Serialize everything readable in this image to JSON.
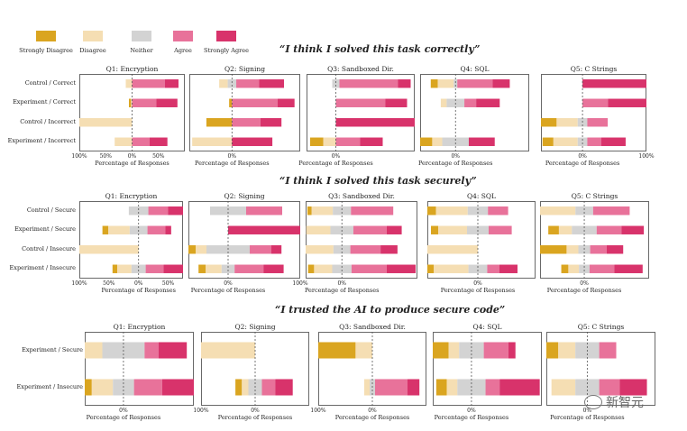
{
  "legend": {
    "items": [
      {
        "label": "Strongly Disagree",
        "color": "#daa520"
      },
      {
        "label": "Disagree",
        "color": "#f5deb3"
      },
      {
        "label": "Neither",
        "color": "#d3d3d3"
      },
      {
        "label": "Agree",
        "color": "#e8729a"
      },
      {
        "label": "Strongly Agree",
        "color": "#d8336b"
      }
    ]
  },
  "watermark": {
    "text": "新智元"
  },
  "chart_data": [
    {
      "type": "bar",
      "subtype": "diverging-stacked-bar",
      "title": "“I think I solved this task correctly”",
      "categories": [
        "Control / Correct",
        "Experiment / Correct",
        "Control / Incorrect",
        "Experiment / Incorrect"
      ],
      "xlabel": "Percentage of Responses",
      "panels": [
        {
          "title": "Q1: Encryption",
          "ticks": [
            "100%",
            "50%",
            "0%",
            "50%"
          ],
          "xlim": [
            -100,
            100
          ],
          "rows": [
            [
              0,
              12,
              0,
              62,
              26
            ],
            [
              4,
              2,
              0,
              46,
              40
            ],
            [
              0,
              100,
              0,
              0,
              0
            ],
            [
              0,
              33,
              0,
              33,
              34
            ]
          ]
        },
        {
          "title": "Q2: Signing",
          "ticks": [
            "0%"
          ],
          "xlim": [
            -75,
            120
          ],
          "rows": [
            [
              0,
              15,
              15,
              40,
              44
            ],
            [
              5,
              0,
              0,
              80,
              30
            ],
            [
              45,
              0,
              0,
              50,
              37
            ],
            [
              0,
              70,
              0,
              0,
              71
            ]
          ]
        },
        {
          "title": "Q3: Sandboxed Dir.",
          "ticks": [
            "0%"
          ],
          "xlim": [
            -65,
            175
          ],
          "rows": [
            [
              0,
              0,
              16,
              130,
              28
            ],
            [
              0,
              0,
              0,
              110,
              48
            ],
            [
              0,
              0,
              0,
              0,
              175
            ],
            [
              29,
              28,
              0,
              54,
              50
            ]
          ]
        },
        {
          "title": "Q4: SQL",
          "ticks": [
            "0%"
          ],
          "xlim": [
            -60,
            125
          ],
          "rows": [
            [
              12,
              27,
              6,
              60,
              29
            ],
            [
              0,
              10,
              30,
              20,
              40
            ],
            [
              0,
              0,
              0,
              0,
              0
            ],
            [
              25,
              17,
              45,
              0,
              44
            ]
          ]
        },
        {
          "title": "Q5: C Strings",
          "ticks": [
            "0%",
            "100%"
          ],
          "xlim": [
            -65,
            100
          ],
          "rows": [
            [
              0,
              0,
              0,
              0,
              100
            ],
            [
              0,
              0,
              0,
              40,
              60
            ],
            [
              35,
              33,
              15,
              32,
              0
            ],
            [
              17,
              38,
              15,
              22,
              38
            ]
          ]
        }
      ]
    },
    {
      "type": "bar",
      "subtype": "diverging-stacked-bar",
      "title": "“I think I solved this task securely”",
      "categories": [
        "Control / Secure",
        "Experiment / Secure",
        "Control / Insecure",
        "Experiment / Insecure"
      ],
      "xlabel": "Percentage of Responses",
      "panels": [
        {
          "title": "Q1: Encryption",
          "ticks": [
            "100%",
            "50%",
            "0%",
            "50%"
          ],
          "xlim": [
            -100,
            75
          ],
          "rows": [
            [
              0,
              0,
              33,
              33,
              40
            ],
            [
              10,
              36,
              30,
              30,
              10
            ],
            [
              0,
              100,
              0,
              0,
              0
            ],
            [
              8,
              24,
              24,
              30,
              34
            ]
          ]
        },
        {
          "title": "Q2: Signing",
          "ticks": [
            "0%",
            "100%"
          ],
          "xlim": [
            -55,
            100
          ],
          "rows": [
            [
              0,
              0,
              50,
              50,
              0
            ],
            [
              0,
              0,
              0,
              0,
              100
            ],
            [
              15,
              15,
              60,
              30,
              14
            ],
            [
              10,
              22,
              18,
              40,
              28
            ]
          ]
        },
        {
          "title": "Q3: Sandboxed Dir.",
          "ticks": [
            "0%"
          ],
          "xlim": [
            -60,
            125
          ],
          "rows": [
            [
              7,
              35,
              30,
              70,
              0
            ],
            [
              0,
              40,
              38,
              55,
              25
            ],
            [
              0,
              48,
              28,
              50,
              28
            ],
            [
              10,
              30,
              32,
              58,
              48
            ]
          ]
        },
        {
          "title": "Q4: SQL",
          "ticks": [
            "0%"
          ],
          "xlim": [
            -70,
            80
          ],
          "rows": [
            [
              15,
              44,
              28,
              28,
              0
            ],
            [
              10,
              40,
              30,
              32,
              0
            ],
            [
              0,
              120,
              0,
              0,
              0
            ],
            [
              17,
              48,
              26,
              17,
              25
            ]
          ]
        },
        {
          "title": "Q5: C Strings",
          "ticks": [
            "0%"
          ],
          "xlim": [
            -75,
            110
          ],
          "rows": [
            [
              0,
              62,
              30,
              62,
              0
            ],
            [
              18,
              22,
              42,
              42,
              38
            ],
            [
              50,
              20,
              20,
              28,
              28
            ],
            [
              12,
              18,
              18,
              42,
              48
            ]
          ]
        }
      ]
    },
    {
      "type": "bar",
      "subtype": "diverging-stacked-bar",
      "title": "“I trusted the AI to produce secure code”",
      "categories": [
        "Experiment / Secure",
        "Experiment / Insecure"
      ],
      "xlabel": "Percentage of Responses",
      "panels": [
        {
          "title": "Q1: Encryption",
          "ticks": [
            "0%"
          ],
          "xlim": [
            -55,
            100
          ],
          "rows": [
            [
              20,
              25,
              60,
              20,
              40
            ],
            [
              15,
              30,
              30,
              40,
              48
            ]
          ]
        },
        {
          "title": "Q2: Signing",
          "ticks": [
            "100%",
            "0%"
          ],
          "xlim": [
            -100,
            100
          ],
          "rows": [
            [
              0,
              100,
              0,
              0,
              0
            ],
            [
              12,
              12,
              25,
              25,
              32
            ]
          ]
        },
        {
          "title": "Q3: Sandboxed Dir.",
          "ticks": [
            "100%",
            "0%"
          ],
          "xlim": [
            -100,
            100
          ],
          "rows": [
            [
              69,
              31,
              0,
              0,
              0
            ],
            [
              0,
              10,
              10,
              60,
              22
            ]
          ]
        },
        {
          "title": "Q4: SQL",
          "ticks": [
            "0%"
          ],
          "xlim": [
            -55,
            100
          ],
          "rows": [
            [
              25,
              15,
              35,
              35,
              10
            ],
            [
              15,
              15,
              40,
              20,
              57
            ]
          ]
        },
        {
          "title": "Q5: C Strings",
          "ticks": [
            "0%"
          ],
          "xlim": [
            -60,
            100
          ],
          "rows": [
            [
              25,
              25,
              35,
              25,
              0
            ],
            [
              0,
              35,
              35,
              30,
              40
            ]
          ]
        }
      ]
    }
  ]
}
